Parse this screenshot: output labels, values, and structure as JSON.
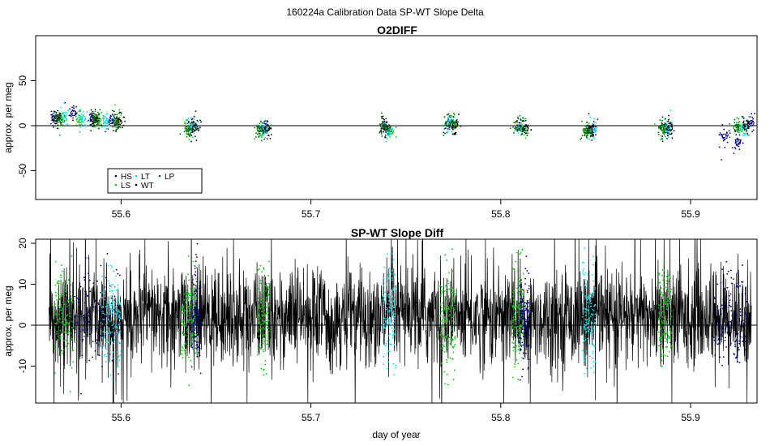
{
  "figure": {
    "title": "160224a   Calibration Data SP-WT Slope Delta",
    "xlabel": "day of year"
  },
  "legend": {
    "entries": [
      {
        "label": "HS",
        "color": "#000080",
        "marker": "dot"
      },
      {
        "label": "LS",
        "color": "#00cc00",
        "marker": "dot"
      },
      {
        "label": "LT",
        "color": "#00e5ee",
        "marker": "dot"
      },
      {
        "label": "WT",
        "color": "#000000",
        "marker": "dot"
      },
      {
        "label": "LP",
        "color": "#006400",
        "marker": "dot"
      }
    ]
  },
  "chart_data": [
    {
      "type": "scatter",
      "title": "O2DIFF",
      "ylabel": "approx. per meg",
      "xlim": [
        55.555,
        55.935
      ],
      "ylim": [
        -82,
        100
      ],
      "xticks": [
        55.6,
        55.7,
        55.8,
        55.9
      ],
      "yticks": [
        -50,
        0,
        50
      ],
      "tick_labels_x": [
        "55.6",
        "55.7",
        "55.8",
        "55.9"
      ],
      "tick_labels_y": [
        "-50",
        "0",
        "50"
      ],
      "reference_line": 0,
      "series": [
        {
          "name": "HS",
          "color": "#000080",
          "x": [
            55.565,
            55.575,
            55.585,
            55.595,
            55.637,
            55.675,
            55.74,
            55.774,
            55.81,
            55.848,
            55.887,
            55.918,
            55.925,
            55.932
          ],
          "y": [
            8,
            14,
            8,
            5,
            -2,
            -3,
            -3,
            2,
            -2,
            -4,
            -3,
            -12,
            -18,
            3
          ]
        },
        {
          "name": "LS",
          "color": "#00cc00",
          "x": [
            55.568,
            55.578,
            55.588,
            55.598,
            55.636,
            55.674,
            55.742,
            55.775,
            55.812,
            55.846,
            55.886,
            55.926
          ],
          "y": [
            8,
            6,
            6,
            4,
            -3,
            -4,
            -6,
            2,
            -3,
            -6,
            -4,
            -2
          ]
        },
        {
          "name": "LT",
          "color": "#00e5ee",
          "x": [
            55.57,
            55.58,
            55.592,
            55.638,
            55.676,
            55.741,
            55.773,
            55.811,
            55.849,
            55.888,
            55.928
          ],
          "y": [
            12,
            8,
            6,
            -2,
            -3,
            -5,
            3,
            -3,
            -5,
            -3,
            -1
          ]
        },
        {
          "name": "WT",
          "color": "#000000",
          "x": [
            55.566,
            55.586,
            55.599,
            55.639,
            55.677,
            55.739,
            55.776,
            55.813,
            55.847,
            55.889,
            55.929
          ],
          "y": [
            8,
            6,
            4,
            -2,
            -3,
            -2,
            1,
            -3,
            -5,
            -3,
            -1
          ]
        },
        {
          "name": "LP",
          "color": "#006400",
          "x": [
            55.567,
            55.587,
            55.597,
            55.635,
            55.673,
            55.738,
            55.772,
            55.809,
            55.845,
            55.885,
            55.924
          ],
          "y": [
            9,
            7,
            5,
            -3,
            -4,
            0,
            2,
            -2,
            -6,
            -2,
            -2
          ]
        }
      ]
    },
    {
      "type": "line",
      "title": "SP-WT Slope Diff",
      "ylabel": "approx. per meg",
      "xlabel": "day of year",
      "xlim": [
        55.555,
        55.935
      ],
      "ylim": [
        -19,
        21
      ],
      "xticks": [
        55.6,
        55.7,
        55.8,
        55.9
      ],
      "yticks": [
        -10,
        0,
        10,
        20
      ],
      "tick_labels_x": [
        "55.6",
        "55.7",
        "55.8",
        "55.9"
      ],
      "tick_labels_y": [
        "-10",
        "0",
        "10",
        "20"
      ],
      "reference_line": 0,
      "x_range": [
        55.562,
        55.932
      ],
      "noise_center": 2,
      "noise_sd": 6,
      "colored_segments": [
        {
          "color": "#00cc00",
          "x_start": 55.565,
          "x_end": 55.575
        },
        {
          "color": "#000080",
          "x_start": 55.575,
          "x_end": 55.6
        },
        {
          "color": "#00e5ee",
          "x_start": 55.59,
          "x_end": 55.6
        },
        {
          "color": "#00cc00",
          "x_start": 55.632,
          "x_end": 55.64
        },
        {
          "color": "#000080",
          "x_start": 55.637,
          "x_end": 55.642
        },
        {
          "color": "#00cc00",
          "x_start": 55.672,
          "x_end": 55.678
        },
        {
          "color": "#00e5ee",
          "x_start": 55.738,
          "x_end": 55.745
        },
        {
          "color": "#00cc00",
          "x_start": 55.768,
          "x_end": 55.776
        },
        {
          "color": "#00cc00",
          "x_start": 55.806,
          "x_end": 55.812
        },
        {
          "color": "#000080",
          "x_start": 55.81,
          "x_end": 55.815
        },
        {
          "color": "#00e5ee",
          "x_start": 55.843,
          "x_end": 55.85
        },
        {
          "color": "#00cc00",
          "x_start": 55.883,
          "x_end": 55.89
        },
        {
          "color": "#000080",
          "x_start": 55.912,
          "x_end": 55.93
        }
      ]
    }
  ]
}
